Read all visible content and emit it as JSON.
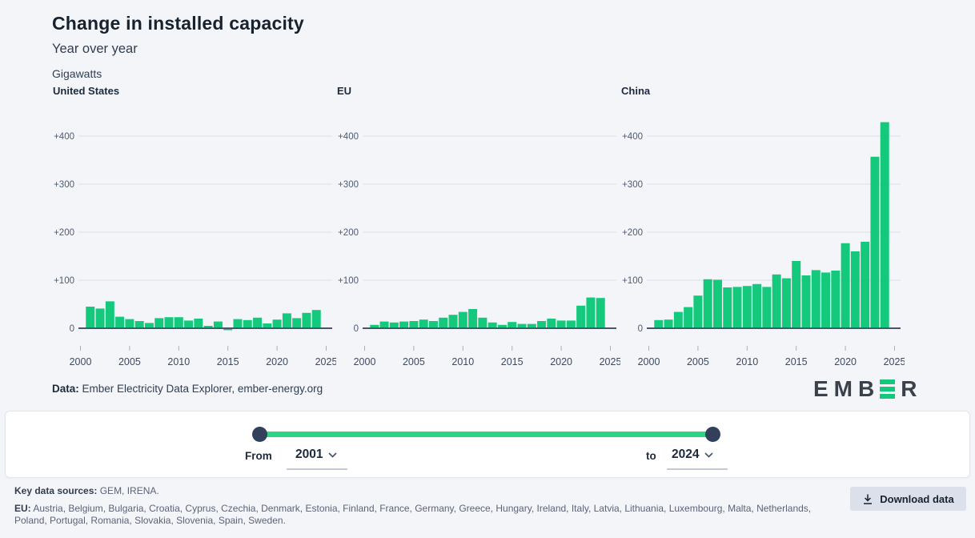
{
  "header": {
    "title": "Change in installed capacity",
    "subtitle": "Year over year",
    "units": "Gigawatts"
  },
  "chart_data": {
    "type": "bar",
    "x": [
      2001,
      2002,
      2003,
      2004,
      2005,
      2006,
      2007,
      2008,
      2009,
      2010,
      2011,
      2012,
      2013,
      2014,
      2015,
      2016,
      2017,
      2018,
      2019,
      2020,
      2021,
      2022,
      2023,
      2024
    ],
    "series": [
      {
        "name": "United States",
        "values": [
          45,
          41,
          56,
          24,
          19,
          15,
          11,
          21,
          23,
          23,
          16,
          20,
          5,
          14,
          -4,
          19,
          17,
          22,
          10,
          18,
          31,
          21,
          32,
          38
        ]
      },
      {
        "name": "EU",
        "values": [
          7,
          14,
          12,
          14,
          15,
          18,
          15,
          22,
          28,
          34,
          40,
          22,
          12,
          7,
          13,
          9,
          9,
          15,
          20,
          16,
          16,
          47,
          64,
          63
        ]
      },
      {
        "name": "China",
        "values": [
          17,
          18,
          34,
          44,
          68,
          102,
          101,
          85,
          86,
          88,
          92,
          86,
          112,
          104,
          140,
          110,
          121,
          116,
          120,
          177,
          160,
          180,
          357,
          429
        ]
      }
    ],
    "title": "Change in installed capacity",
    "subtitle": "Year over year",
    "ylabel": "Gigawatts",
    "xlabel": "",
    "ylim": [
      -10,
      445
    ],
    "yticks": [
      0,
      100,
      200,
      300,
      400
    ],
    "ytick_labels": [
      "0",
      "+100",
      "+200",
      "+300",
      "+400"
    ],
    "xticks": [
      2000,
      2005,
      2010,
      2015,
      2020,
      2025
    ],
    "grid": true,
    "legend": false,
    "bar_color": "#14c87c",
    "grid_color": "#dcdfe9",
    "axis_color": "#4a556c",
    "ytick_color": "#4f5b74",
    "xtick_color": "#3d4a61"
  },
  "source_line": {
    "label": "Data:",
    "text": " Ember Electricity Data Explorer, ember-energy.org"
  },
  "logo": {
    "left": "EMB",
    "right": "R"
  },
  "slider": {
    "from_label": "From",
    "from_value": "2001",
    "to_label": "to",
    "to_value": "2024"
  },
  "footer": {
    "key_sources_label": "Key data sources:",
    "key_sources_text": " GEM, IRENA.",
    "eu_label": "EU:",
    "eu_text": " Austria, Belgium, Bulgaria, Croatia, Cyprus, Czechia, Denmark, Estonia, Finland, France, Germany, Greece, Hungary, Ireland, Italy, Latvia, Lithuania, Luxembourg, Malta, Netherlands, Poland, Portugal, Romania, Slovakia, Slovenia, Spain, Sweden.",
    "download_label": "Download data"
  }
}
